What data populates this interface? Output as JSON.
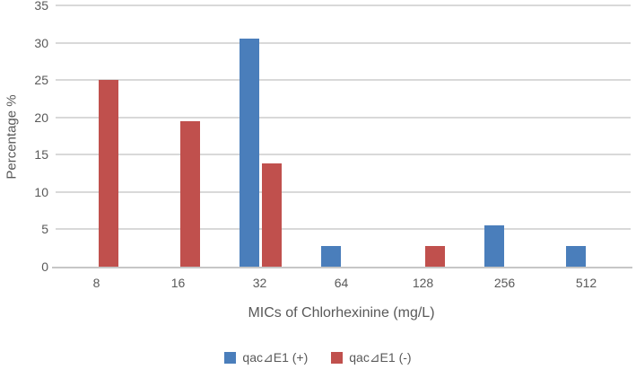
{
  "chart_data": {
    "type": "bar",
    "title": "",
    "categories": [
      "8",
      "16",
      "32",
      "64",
      "128",
      "256",
      "512"
    ],
    "series": [
      {
        "name": "qac⊿E1 (+)",
        "color": "#4A7EBB",
        "values": [
          0,
          0,
          30.56,
          2.78,
          0,
          5.56,
          2.78
        ]
      },
      {
        "name": "qac⊿E1 (-)",
        "color": "#C0504D",
        "values": [
          25,
          19.44,
          13.89,
          0,
          2.78,
          0,
          0
        ]
      }
    ],
    "xlabel": "MICs of Chlorhexinine (mg/L)",
    "ylabel": "Percentage %",
    "ylim": [
      0,
      35
    ],
    "yticks": [
      0,
      5,
      10,
      15,
      20,
      25,
      30,
      35
    ],
    "grid": true,
    "legend_position": "bottom",
    "colors": {
      "gridline": "#D9D9D9",
      "axis_line": "#C6C6C6",
      "text": "#595959",
      "background": "#FFFFFF"
    }
  }
}
